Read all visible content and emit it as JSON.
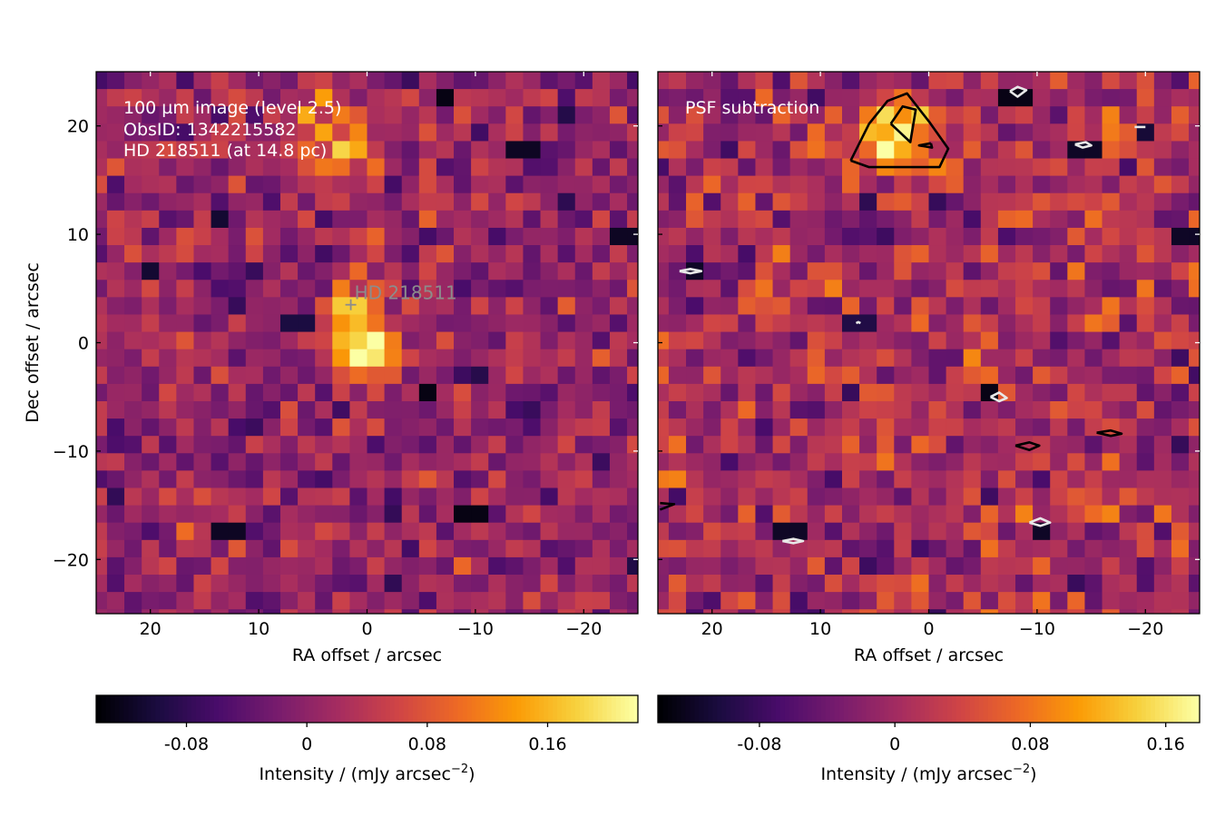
{
  "chart_data": [
    {
      "type": "heatmap",
      "panel": "left",
      "annotation_lines": [
        "100 µm image (level 2.5)",
        "ObsID: 1342215582",
        "HD 218511 (at 14.8 pc)"
      ],
      "star_label": "HD 218511",
      "star_position": {
        "ra": 1.5,
        "dec": 3.5
      },
      "xlabel": "RA offset / arcsec",
      "ylabel": "Dec offset / arcsec",
      "xlim": [
        25,
        -25
      ],
      "ylim": [
        -25,
        25
      ],
      "x_ticks": [
        20,
        10,
        0,
        -10,
        -20
      ],
      "y_ticks": [
        20,
        10,
        0,
        -10,
        -20
      ],
      "x_tick_labels": [
        "20",
        "10",
        "0",
        "−10",
        "−20"
      ],
      "y_tick_labels": [
        "20",
        "10",
        "0",
        "−10",
        "−20"
      ],
      "grid": false,
      "pixel_size_arcsec": 1.6,
      "bright_sources": [
        {
          "ra": 0.0,
          "dec": 0.0,
          "peak": 0.22,
          "sigma": 2.2
        },
        {
          "ra": 1.6,
          "dec": 3.2,
          "peak": 0.12,
          "sigma": 1.8
        },
        {
          "ra": 3.5,
          "dec": 19.0,
          "peak": 0.13,
          "sigma": 2.6
        }
      ],
      "dark_pixels": [
        {
          "ra": -7.5,
          "dec": 22.5,
          "value": -0.13
        },
        {
          "ra": -14.5,
          "dec": 17.8,
          "value": -0.12
        },
        {
          "ra": -6.2,
          "dec": -4.7,
          "value": -0.13
        },
        {
          "ra": -9.5,
          "dec": -15.8,
          "value": -0.13
        },
        {
          "ra": 13.5,
          "dec": 11.3,
          "value": -0.11
        },
        {
          "ra": 20.5,
          "dec": 6.5,
          "value": -0.11
        },
        {
          "ra": 12.8,
          "dec": -17.5,
          "value": -0.12
        },
        {
          "ra": -24.0,
          "dec": 9.8,
          "value": -0.12
        },
        {
          "ra": 6.5,
          "dec": 1.8,
          "value": -0.1
        }
      ],
      "colorbar": {
        "label": "Intensity / (mJy arcsec",
        "label_superscript": "−2",
        "label_suffix": ")",
        "range": [
          -0.14,
          0.22
        ],
        "ticks": [
          -0.08,
          0,
          0.08,
          0.16
        ],
        "tick_labels": [
          "-0.08",
          "0",
          "0.08",
          "0.16"
        ]
      }
    },
    {
      "type": "heatmap",
      "panel": "right",
      "annotation_lines": [
        "PSF subtraction"
      ],
      "xlabel": "RA offset / arcsec",
      "xlim": [
        25,
        -25
      ],
      "ylim": [
        -25,
        25
      ],
      "x_ticks": [
        20,
        10,
        0,
        -10,
        -20
      ],
      "y_ticks": [
        20,
        10,
        0,
        -10,
        -20
      ],
      "x_tick_labels": [
        "20",
        "10",
        "0",
        "−10",
        "−20"
      ],
      "grid": false,
      "pixel_size_arcsec": 1.6,
      "bright_sources": [
        {
          "ra": 3.0,
          "dec": 19.0,
          "peak": 0.15,
          "sigma": 2.4
        }
      ],
      "dark_pixels": [
        {
          "ra": -8.0,
          "dec": 22.5,
          "value": -0.13
        },
        {
          "ra": -14.5,
          "dec": 17.8,
          "value": -0.12
        },
        {
          "ra": 21.5,
          "dec": 6.5,
          "value": -0.12
        },
        {
          "ra": -6.2,
          "dec": -4.7,
          "value": -0.13
        },
        {
          "ra": -10.5,
          "dec": -17.0,
          "value": -0.12
        },
        {
          "ra": 12.8,
          "dec": -17.5,
          "value": -0.12
        },
        {
          "ra": -24.0,
          "dec": 9.8,
          "value": -0.12
        },
        {
          "ra": 6.5,
          "dec": 1.8,
          "value": -0.1
        },
        {
          "ra": -19.5,
          "dec": 19.5,
          "value": -0.11
        }
      ],
      "contours": [
        {
          "level": "positive",
          "color": "#000000",
          "points": [
            [
              7.2,
              16.8
            ],
            [
              5.5,
              20.2
            ],
            [
              3.8,
              22.3
            ],
            [
              2.0,
              23.0
            ],
            [
              -0.1,
              20.3
            ],
            [
              -1.8,
              17.9
            ],
            [
              -1.0,
              16.2
            ],
            [
              2.2,
              16.2
            ],
            [
              5.5,
              16.2
            ],
            [
              7.2,
              16.8
            ]
          ]
        },
        {
          "level": "positive",
          "color": "#000000",
          "points": [
            [
              3.5,
              20.2
            ],
            [
              2.4,
              21.8
            ],
            [
              1.2,
              21.5
            ],
            [
              1.7,
              18.5
            ],
            [
              3.5,
              20.2
            ]
          ]
        },
        {
          "level": "positive",
          "color": "#000000",
          "points": [
            [
              -8.0,
              -9.5
            ],
            [
              -9.3,
              -9.2
            ],
            [
              -10.2,
              -9.5
            ],
            [
              -9.3,
              -9.9
            ],
            [
              -8.0,
              -9.5
            ]
          ]
        },
        {
          "level": "positive",
          "color": "#000000",
          "points": [
            [
              -15.5,
              -8.3
            ],
            [
              -16.8,
              -8.1
            ],
            [
              -17.8,
              -8.4
            ],
            [
              -16.8,
              -8.6
            ],
            [
              -15.5,
              -8.3
            ]
          ]
        },
        {
          "level": "positive",
          "color": "#000000",
          "points": [
            [
              24.8,
              -14.8
            ],
            [
              23.5,
              -14.9
            ],
            [
              24.8,
              -15.4
            ]
          ]
        },
        {
          "level": "positive",
          "color": "#000000",
          "points": [
            [
              -0.2,
              18.4
            ],
            [
              -0.3,
              18.0
            ],
            [
              0.9,
              18.2
            ],
            [
              -0.2,
              18.4
            ]
          ]
        },
        {
          "level": "negative",
          "color": "#e8e8e8",
          "points": [
            [
              -7.5,
              23.2
            ],
            [
              -8.2,
              23.6
            ],
            [
              -9.0,
              23.3
            ],
            [
              -8.2,
              22.7
            ],
            [
              -7.5,
              23.2
            ]
          ]
        },
        {
          "level": "negative",
          "color": "#e8e8e8",
          "points": [
            [
              -13.5,
              18.3
            ],
            [
              -14.5,
              18.5
            ],
            [
              -15.0,
              18.2
            ],
            [
              -14.2,
              18.0
            ],
            [
              -13.5,
              18.3
            ]
          ]
        },
        {
          "level": "negative",
          "color": "#e8e8e8",
          "points": [
            [
              23.0,
              6.6
            ],
            [
              22.0,
              6.8
            ],
            [
              21.0,
              6.6
            ],
            [
              22.0,
              6.4
            ],
            [
              23.0,
              6.6
            ]
          ]
        },
        {
          "level": "negative",
          "color": "#e8e8e8",
          "points": [
            [
              -5.7,
              -5.0
            ],
            [
              -6.5,
              -4.6
            ],
            [
              -7.2,
              -5.1
            ],
            [
              -6.5,
              -5.4
            ],
            [
              -5.7,
              -5.0
            ]
          ]
        },
        {
          "level": "negative",
          "color": "#e8e8e8",
          "points": [
            [
              -9.3,
              -16.6
            ],
            [
              -10.3,
              -16.2
            ],
            [
              -11.2,
              -16.6
            ],
            [
              -10.3,
              -16.9
            ],
            [
              -9.3,
              -16.6
            ]
          ]
        },
        {
          "level": "negative",
          "color": "#e8e8e8",
          "points": [
            [
              13.5,
              -18.3
            ],
            [
              12.5,
              -18.1
            ],
            [
              11.6,
              -18.3
            ],
            [
              12.5,
              -18.5
            ],
            [
              13.5,
              -18.3
            ]
          ]
        },
        {
          "level": "negative",
          "color": "#e8e8e8",
          "points": [
            [
              -19.0,
              19.9
            ],
            [
              -20.0,
              19.9
            ]
          ]
        },
        {
          "level": "negative",
          "color": "#e8e8e8",
          "points": [
            [
              6.7,
              1.8
            ],
            [
              6.5,
              1.9
            ],
            [
              6.3,
              1.8
            ]
          ]
        }
      ],
      "colorbar": {
        "label": "Intensity / (mJy arcsec",
        "label_superscript": "−2",
        "label_suffix": ")",
        "range": [
          -0.14,
          0.18
        ],
        "ticks": [
          -0.08,
          0,
          0.08,
          0.16
        ],
        "tick_labels": [
          "-0.08",
          "0",
          "0.08",
          "0.16"
        ]
      }
    }
  ],
  "colormap_stops": [
    "#000004",
    "#1b0c41",
    "#4a0c6b",
    "#781c6d",
    "#a52c60",
    "#cf4446",
    "#ed6925",
    "#fb9b06",
    "#f7d13d",
    "#fcffa4"
  ]
}
